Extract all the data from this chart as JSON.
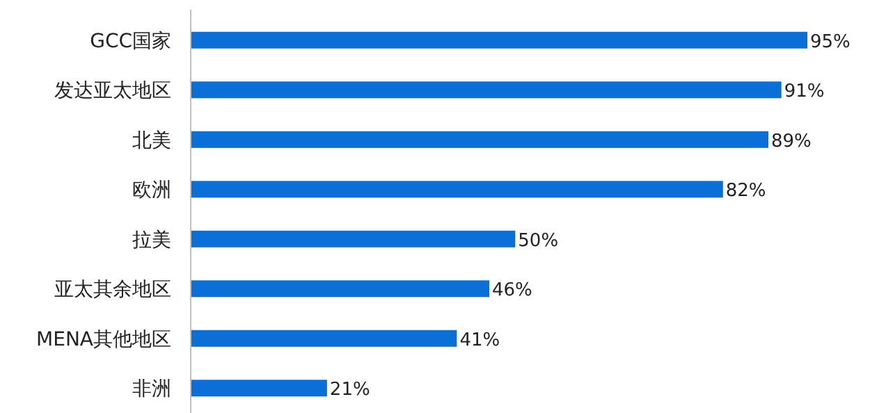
{
  "chart_data": {
    "type": "bar",
    "orientation": "horizontal",
    "categories": [
      "GCC国家",
      "发达亚太地区",
      "北美",
      "欧洲",
      "拉美",
      "亚太其余地区",
      "MENA其他地区",
      "非洲"
    ],
    "values": [
      95,
      91,
      89,
      82,
      50,
      46,
      41,
      21
    ],
    "value_labels": [
      "95%",
      "91%",
      "89%",
      "82%",
      "50%",
      "46%",
      "41%",
      "21%"
    ],
    "color": "#0b6fd8"
  }
}
